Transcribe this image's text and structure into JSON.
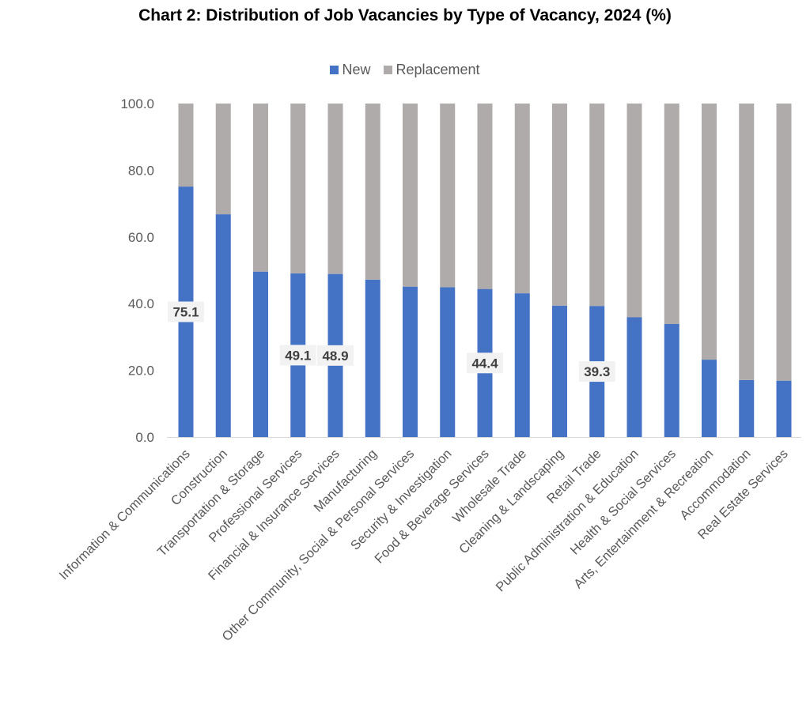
{
  "chart_data": {
    "type": "bar",
    "stacked": true,
    "title": "Chart 2: Distribution of Job Vacancies by Type of Vacancy, 2024 (%)",
    "categories": [
      "Information & Communications",
      "Construction",
      "Transportation & Storage",
      "Professional Services",
      "Financial & Insurance Services",
      "Manufacturing",
      "Other Community, Social & Personal Services",
      "Security & Investigation",
      "Food & Beverage Services",
      "Wholesale Trade",
      "Cleaning & Landscaping",
      "Retail Trade",
      "Public Administration & Education",
      "Health & Social Services",
      "Arts, Entertainment & Recreation",
      "Accommodation",
      "Real Estate Services"
    ],
    "series": [
      {
        "name": "New",
        "color": "#4472c4",
        "values": [
          75.1,
          66.8,
          49.6,
          49.1,
          48.9,
          47.2,
          45.1,
          44.9,
          44.4,
          43.1,
          39.4,
          39.3,
          35.9,
          33.9,
          23.2,
          17.1,
          16.9
        ]
      },
      {
        "name": "Replacement",
        "color": "#afabab",
        "values": [
          24.9,
          33.2,
          50.4,
          50.9,
          51.1,
          52.8,
          54.9,
          55.1,
          55.6,
          56.9,
          60.6,
          60.7,
          64.1,
          66.1,
          76.8,
          82.9,
          83.1
        ]
      }
    ],
    "data_labels": [
      {
        "category_index": 0,
        "text": "75.1"
      },
      {
        "category_index": 3,
        "text": "49.1"
      },
      {
        "category_index": 4,
        "text": "48.9"
      },
      {
        "category_index": 8,
        "text": "44.4"
      },
      {
        "category_index": 11,
        "text": "39.3"
      }
    ],
    "yticks": [
      "0.0",
      "20.0",
      "40.0",
      "60.0",
      "80.0",
      "100.0"
    ],
    "ylim": [
      0,
      100
    ],
    "grid": false,
    "legend_position": "top"
  }
}
